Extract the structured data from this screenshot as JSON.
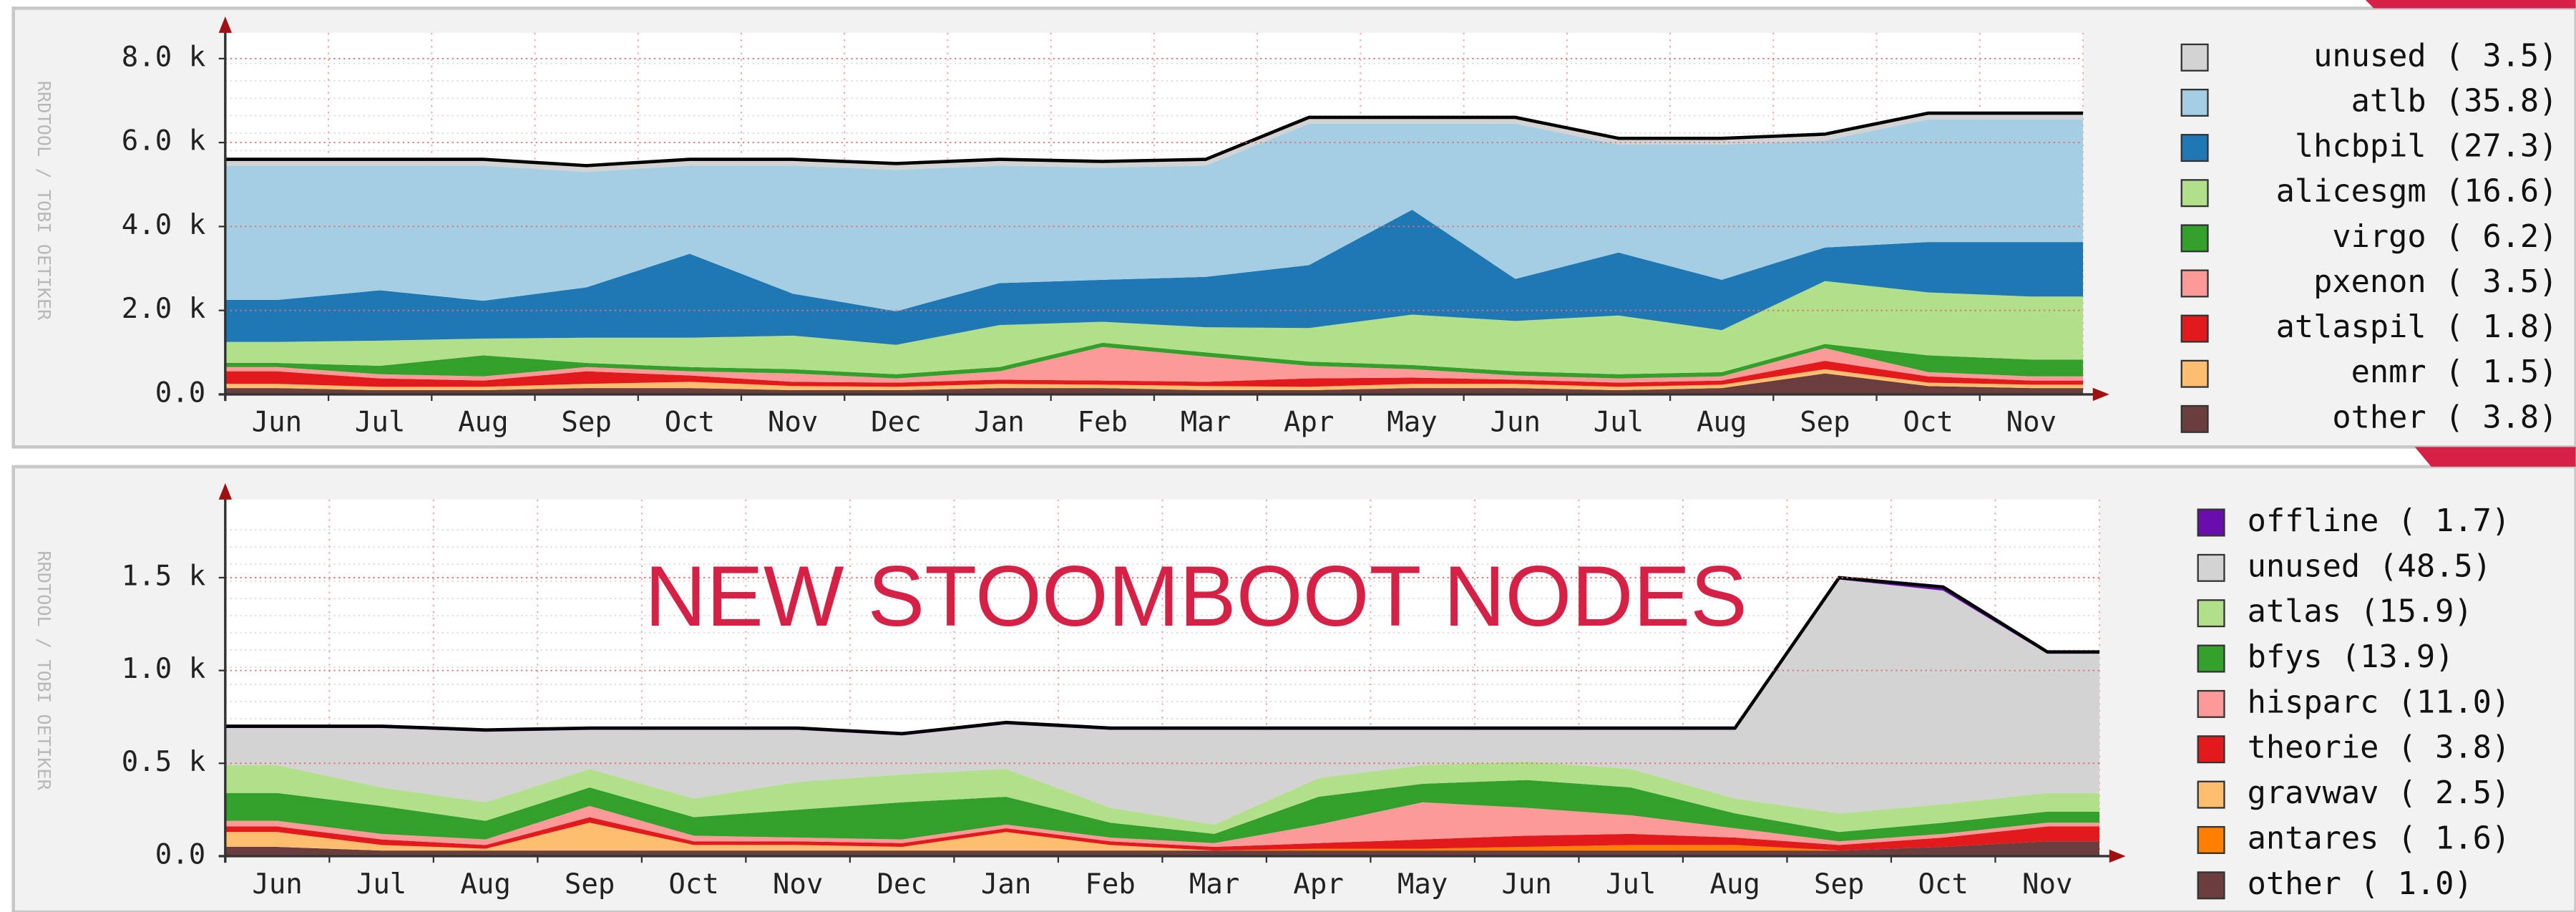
{
  "chart_data": [
    {
      "type": "area",
      "stacked": true,
      "grid": true,
      "watermark": "RRDTOOL / TOBI OETIKER",
      "categories": [
        "Jun",
        "Jul",
        "Aug",
        "Sep",
        "Oct",
        "Nov",
        "Dec",
        "Jan",
        "Feb",
        "Mar",
        "Apr",
        "May",
        "Jun",
        "Jul",
        "Aug",
        "Sep",
        "Oct",
        "Nov"
      ],
      "ylim": [
        0,
        8300
      ],
      "yticks": [
        {
          "value": 0,
          "label": "0.0"
        },
        {
          "value": 2000,
          "label": "2.0 k"
        },
        {
          "value": 4000,
          "label": "4.0 k"
        },
        {
          "value": 6000,
          "label": "6.0 k"
        },
        {
          "value": 8000,
          "label": "8.0 k"
        }
      ],
      "series": [
        {
          "name": "unused ( 3.5)",
          "color": "#d3d3d3",
          "values": [
            150,
            150,
            150,
            150,
            150,
            150,
            150,
            150,
            150,
            150,
            150,
            150,
            150,
            150,
            150,
            150,
            150,
            150
          ]
        },
        {
          "name": "atlb (35.8)",
          "color": "#a6cee3",
          "values": [
            3200,
            2970,
            3220,
            2750,
            2100,
            3050,
            3370,
            2800,
            2670,
            2650,
            3370,
            2050,
            3700,
            2570,
            3220,
            2550,
            2920,
            2920
          ]
        },
        {
          "name": "lhcbpil (27.3)",
          "color": "#1f78b4",
          "values": [
            1000,
            1200,
            900,
            1200,
            2000,
            1000,
            800,
            1000,
            1000,
            1200,
            1500,
            2500,
            1000,
            1500,
            1200,
            800,
            1200,
            1300
          ]
        },
        {
          "name": "alicesgm (16.6)",
          "color": "#b2df8a",
          "values": [
            500,
            600,
            400,
            600,
            700,
            800,
            700,
            1000,
            500,
            600,
            800,
            1200,
            1200,
            1400,
            1000,
            1500,
            1500,
            1500
          ]
        },
        {
          "name": "virgo ( 6.2)",
          "color": "#33a02c",
          "values": [
            100,
            200,
            500,
            100,
            100,
            100,
            100,
            100,
            100,
            100,
            100,
            100,
            100,
            100,
            100,
            100,
            400,
            400
          ]
        },
        {
          "name": "pxenon ( 3.5)",
          "color": "#fb9a99",
          "values": [
            100,
            100,
            100,
            100,
            100,
            200,
            100,
            200,
            800,
            600,
            300,
            200,
            100,
            100,
            100,
            300,
            100,
            100
          ]
        },
        {
          "name": "atlaspil ( 1.8)",
          "color": "#e31a1c",
          "values": [
            300,
            200,
            150,
            300,
            150,
            100,
            100,
            100,
            100,
            100,
            200,
            150,
            100,
            100,
            100,
            200,
            150,
            100
          ]
        },
        {
          "name": "enmr ( 1.5)",
          "color": "#fdbf6f",
          "values": [
            100,
            80,
            80,
            100,
            150,
            100,
            80,
            100,
            80,
            100,
            80,
            100,
            100,
            80,
            80,
            100,
            80,
            80
          ]
        },
        {
          "name": "other ( 3.8)",
          "color": "#6b3e3e",
          "values": [
            150,
            100,
            100,
            150,
            150,
            100,
            100,
            150,
            150,
            100,
            100,
            150,
            150,
            100,
            150,
            500,
            200,
            150
          ]
        }
      ]
    },
    {
      "type": "area",
      "stacked": true,
      "grid": true,
      "watermark": "RRDTOOL / TOBI OETIKER",
      "annotation": "NEW STOOMBOOT NODES",
      "categories": [
        "Jun",
        "Jul",
        "Aug",
        "Sep",
        "Oct",
        "Nov",
        "Dec",
        "Jan",
        "Feb",
        "Mar",
        "Apr",
        "May",
        "Jun",
        "Jul",
        "Aug",
        "Sep",
        "Oct",
        "Nov"
      ],
      "ylim": [
        0,
        1850
      ],
      "yticks": [
        {
          "value": 0,
          "label": "0.0"
        },
        {
          "value": 500,
          "label": "0.5 k"
        },
        {
          "value": 1000,
          "label": "1.0 k"
        },
        {
          "value": 1500,
          "label": "1.5 k"
        }
      ],
      "series": [
        {
          "name": "offline ( 1.7)",
          "color": "#6a0dad",
          "values": [
            10,
            10,
            10,
            10,
            10,
            10,
            10,
            10,
            10,
            10,
            10,
            10,
            10,
            10,
            10,
            10,
            20,
            10
          ]
        },
        {
          "name": "unused (48.5)",
          "color": "#d3d3d3",
          "values": [
            200,
            320,
            380,
            210,
            370,
            280,
            210,
            240,
            420,
            510,
            260,
            190,
            170,
            210,
            370,
            1260,
            1150,
            750
          ]
        },
        {
          "name": "atlas (15.9)",
          "color": "#b2df8a",
          "values": [
            150,
            100,
            100,
            100,
            100,
            150,
            150,
            150,
            80,
            50,
            100,
            100,
            100,
            100,
            80,
            100,
            100,
            100
          ]
        },
        {
          "name": "bfys (13.9)",
          "color": "#33a02c",
          "values": [
            150,
            150,
            100,
            100,
            100,
            150,
            200,
            150,
            80,
            50,
            150,
            100,
            150,
            150,
            80,
            50,
            60,
            60
          ]
        },
        {
          "name": "hisparc (11.0)",
          "color": "#fb9a99",
          "values": [
            30,
            30,
            30,
            60,
            30,
            20,
            20,
            20,
            20,
            20,
            100,
            200,
            150,
            100,
            50,
            20,
            20,
            20
          ]
        },
        {
          "name": "theorie ( 3.8)",
          "color": "#e31a1c",
          "values": [
            30,
            30,
            20,
            30,
            20,
            20,
            20,
            20,
            20,
            20,
            30,
            50,
            60,
            60,
            40,
            30,
            50,
            80
          ]
        },
        {
          "name": "gravwav ( 2.5)",
          "color": "#fdbf6f",
          "values": [
            80,
            30,
            10,
            150,
            30,
            30,
            20,
            100,
            30,
            0,
            0,
            0,
            0,
            0,
            0,
            0,
            0,
            0
          ]
        },
        {
          "name": "antares ( 1.6)",
          "color": "#ff7f00",
          "values": [
            0,
            0,
            0,
            0,
            0,
            0,
            0,
            0,
            0,
            0,
            10,
            10,
            20,
            30,
            30,
            0,
            0,
            0
          ]
        },
        {
          "name": "other ( 1.0)",
          "color": "#6b3e3e",
          "values": [
            50,
            30,
            30,
            30,
            30,
            30,
            30,
            30,
            30,
            30,
            30,
            30,
            30,
            30,
            30,
            30,
            50,
            80
          ]
        }
      ]
    }
  ]
}
